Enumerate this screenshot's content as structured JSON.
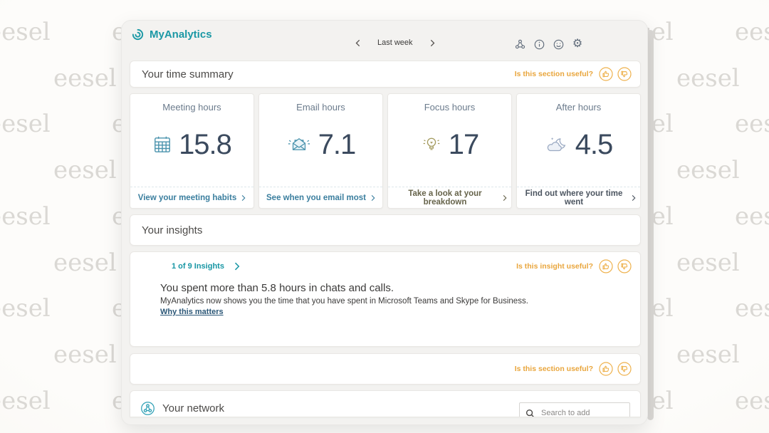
{
  "watermark": {
    "text": "eesel"
  },
  "colors": {
    "brand_teal": "#1b98a5",
    "feedback_orange": "#e9a63d",
    "value_navy": "#3b4a5e",
    "link_steel": "#3a7e9e",
    "link_olive": "#66634a",
    "link_gray": "#4c5560"
  },
  "window": {
    "header": {
      "app_name": "MyAnalytics",
      "period_label": "Last week",
      "icons": [
        "share-icon",
        "info-icon",
        "smiley-icon",
        "gear-icon"
      ]
    },
    "sections": {
      "time_summary": {
        "title": "Your time summary",
        "feedback_label": "Is this section useful?"
      },
      "insights": {
        "title": "Your insights",
        "pager": "1 of 9 Insights",
        "feedback_label": "Is this insight useful?",
        "headline": "You spent more than 5.8 hours in chats and calls.",
        "description": "MyAnalytics now shows you the time that you have spent in Microsoft Teams and Skype for Business.",
        "link_label": "Why this matters"
      },
      "section_feedback": {
        "label": "Is this section useful?"
      }
    },
    "cards": [
      {
        "title": "Meeting hours",
        "value": "15.8",
        "link": "View your meeting habits",
        "icon": "calendar-icon",
        "accent": "#3a7e9e"
      },
      {
        "title": "Email hours",
        "value": "7.1",
        "link": "See when you email most",
        "icon": "email-icon",
        "accent": "#3a7e9e"
      },
      {
        "title": "Focus hours",
        "value": "17",
        "link": "Take a look at your breakdown",
        "icon": "lightbulb-icon",
        "accent": "#66634a"
      },
      {
        "title": "After hours",
        "value": "4.5",
        "link": "Find out where your time went",
        "icon": "moon-cloud-icon",
        "accent": "#4c5560"
      }
    ],
    "network": {
      "title": "Your network",
      "search_placeholder": "Search to add"
    }
  }
}
